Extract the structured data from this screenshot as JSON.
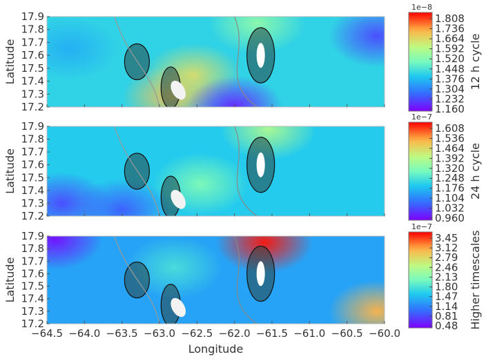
{
  "chart_data": [
    {
      "type": "heatmap",
      "xlabel": "",
      "ylabel": "Latitude",
      "xlim": [
        -64.5,
        -60.0
      ],
      "ylim": [
        17.2,
        17.9
      ],
      "x_ticks": [],
      "y_ticks": [
        "17.9",
        "17.8",
        "17.7",
        "17.6",
        "17.5",
        "17.4",
        "17.3",
        "17.2"
      ],
      "colorbar": {
        "label": "12 h cycle",
        "multiplier": "1e−8",
        "range": [
          1.16,
          1.844
        ],
        "ticks": [
          "1.808",
          "1.736",
          "1.664",
          "1.592",
          "1.520",
          "1.448",
          "1.376",
          "1.304",
          "1.232",
          "1.160"
        ],
        "colormap": "rainbow"
      },
      "hotspots": [
        {
          "lon": -62.85,
          "lat": 17.28,
          "level": 0.78
        },
        {
          "lon": -62.55,
          "lat": 17.45,
          "level": 0.72
        },
        {
          "lon": -61.7,
          "lat": 17.85,
          "level": 0.55
        },
        {
          "lon": -62.0,
          "lat": 17.2,
          "level": 0.05
        },
        {
          "lon": -60.1,
          "lat": 17.75,
          "level": 0.12
        },
        {
          "lon": -64.2,
          "lat": 17.65,
          "level": 0.3
        }
      ]
    },
    {
      "type": "heatmap",
      "xlabel": "",
      "ylabel": "Latitude",
      "xlim": [
        -64.5,
        -60.0
      ],
      "ylim": [
        17.2,
        17.9
      ],
      "x_ticks": [],
      "y_ticks": [
        "17.9",
        "17.8",
        "17.7",
        "17.6",
        "17.5",
        "17.4",
        "17.3",
        "17.2"
      ],
      "colorbar": {
        "label": "24 h cycle",
        "multiplier": "1e−7",
        "range": [
          0.96,
          1.644
        ],
        "ticks": [
          "1.608",
          "1.536",
          "1.464",
          "1.392",
          "1.320",
          "1.248",
          "1.176",
          "1.104",
          "1.032",
          "0.960"
        ],
        "colormap": "rainbow"
      },
      "hotspots": [
        {
          "lon": -61.55,
          "lat": 17.88,
          "level": 0.62
        },
        {
          "lon": -62.45,
          "lat": 17.45,
          "level": 0.52
        },
        {
          "lon": -64.3,
          "lat": 17.3,
          "level": 0.12
        },
        {
          "lon": -63.5,
          "lat": 17.25,
          "level": 0.15
        }
      ]
    },
    {
      "type": "heatmap",
      "xlabel": "Longitude",
      "ylabel": "Latitude",
      "xlim": [
        -64.5,
        -60.0
      ],
      "ylim": [
        17.2,
        17.9
      ],
      "x_ticks": [
        "−64.5",
        "−64.0",
        "−63.5",
        "−63.0",
        "−62.5",
        "−62.0",
        "−61.5",
        "−61.0",
        "−60.5",
        "−60.0"
      ],
      "y_ticks": [
        "17.9",
        "17.8",
        "17.7",
        "17.6",
        "17.5",
        "17.4",
        "17.3",
        "17.2"
      ],
      "colorbar": {
        "label": "Higher timescales",
        "multiplier": "1e−7",
        "range": [
          0.48,
          3.45
        ],
        "ticks": [
          "3.45",
          "3.12",
          "2.79",
          "2.46",
          "2.13",
          "1.80",
          "1.47",
          "1.14",
          "0.81",
          "0.48"
        ],
        "colormap": "rainbow"
      },
      "hotspots": [
        {
          "lon": -61.6,
          "lat": 17.85,
          "level": 0.98
        },
        {
          "lon": -60.1,
          "lat": 17.3,
          "level": 0.82
        },
        {
          "lon": -64.4,
          "lat": 17.88,
          "level": 0.02
        },
        {
          "lon": -62.8,
          "lat": 17.65,
          "level": 0.42
        }
      ]
    }
  ]
}
